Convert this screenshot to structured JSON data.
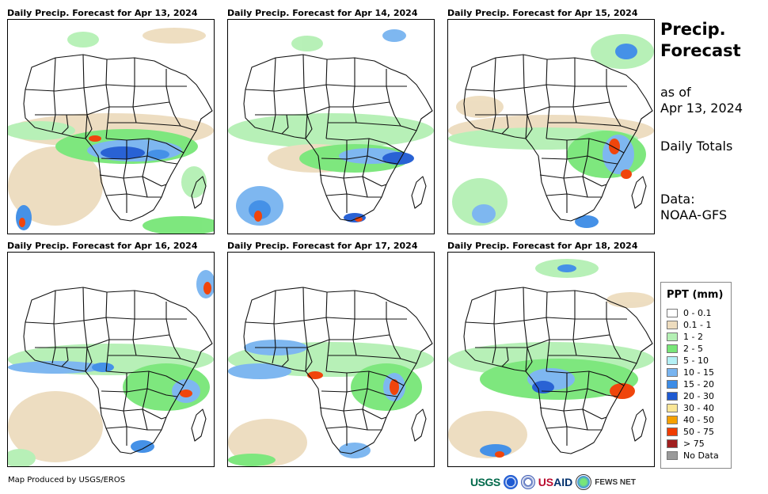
{
  "panels": [
    {
      "title": "Daily Precip. Forecast for Apr 13, 2024"
    },
    {
      "title": "Daily Precip. Forecast for Apr 14, 2024"
    },
    {
      "title": "Daily Precip. Forecast for Apr 15, 2024"
    },
    {
      "title": "Daily Precip. Forecast for Apr 16, 2024"
    },
    {
      "title": "Daily Precip. Forecast for Apr 17, 2024"
    },
    {
      "title": "Daily Precip. Forecast for Apr 18, 2024"
    }
  ],
  "sidebar": {
    "title_line1": "Precip.",
    "title_line2": "Forecast",
    "asof_line1": "as of",
    "asof_line2": "Apr 13, 2024",
    "totals": "Daily Totals",
    "data_line1": "Data:",
    "data_line2": "NOAA-GFS"
  },
  "legend": {
    "title": "PPT (mm)",
    "items": [
      {
        "label": "0 - 0.1",
        "color": "#ffffff"
      },
      {
        "label": "0.1 - 1",
        "color": "#eddcbe"
      },
      {
        "label": "1 - 2",
        "color": "#b4f0b4"
      },
      {
        "label": "2 - 5",
        "color": "#78e678"
      },
      {
        "label": "5 - 10",
        "color": "#b4f0f5"
      },
      {
        "label": "10 - 15",
        "color": "#78b4f0"
      },
      {
        "label": "15 - 20",
        "color": "#3c8ce6"
      },
      {
        "label": "20 - 30",
        "color": "#1e5ad2"
      },
      {
        "label": "30 - 40",
        "color": "#fae696"
      },
      {
        "label": "40 - 50",
        "color": "#f5a000"
      },
      {
        "label": "50 - 75",
        "color": "#f03c00"
      },
      {
        "label": "> 75",
        "color": "#a01e1e"
      },
      {
        "label": "No Data",
        "color": "#999999"
      }
    ]
  },
  "footer": {
    "credit": "Map Produced by USGS/EROS",
    "usgs": "USGS",
    "usaid_us": "US",
    "usaid_aid": "AID",
    "fews": "FEWS NET"
  }
}
